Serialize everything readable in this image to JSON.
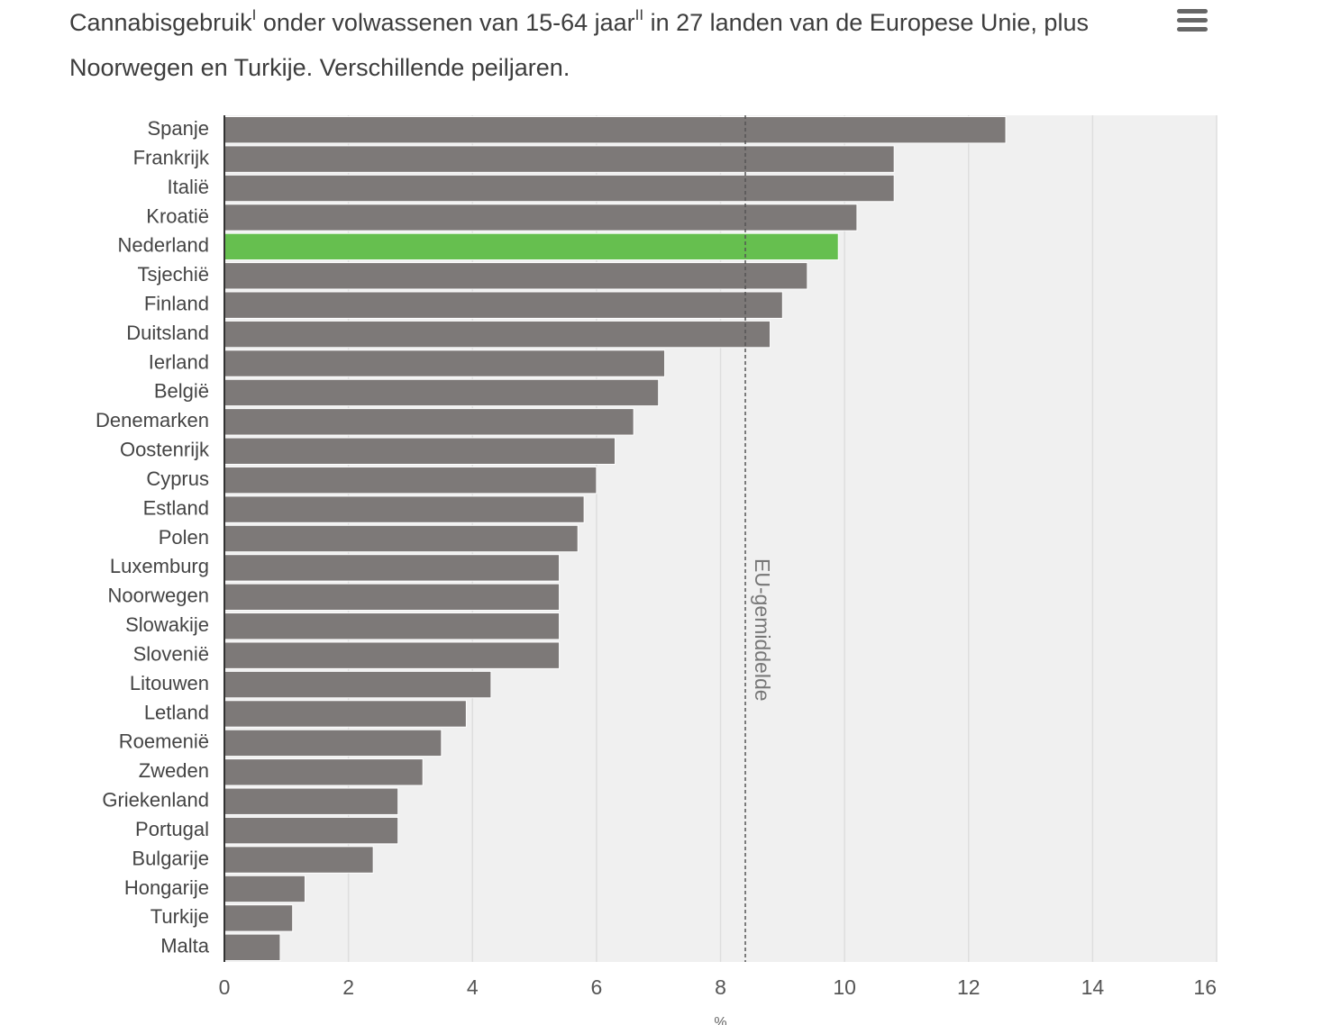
{
  "chart_data": {
    "type": "bar",
    "orientation": "horizontal",
    "title": [
      "Cannabisgebruik",
      "I",
      " onder volwassenen van 15-64 jaar",
      "II",
      " in 27 landen van de Europese Unie, plus Noorwegen en Turkije. Verschillende peiljaren."
    ],
    "x_label": "%",
    "categories": [
      "Spanje",
      "Frankrijk",
      "Italië",
      "Kroatië",
      "Nederland",
      "Tsjechië",
      "Finland",
      "Duitsland",
      "Ierland",
      "België",
      "Denemarken",
      "Oostenrijk",
      "Cyprus",
      "Estland",
      "Polen",
      "Luxemburg",
      "Noorwegen",
      "Slowakije",
      "Slovenië",
      "Litouwen",
      "Letland",
      "Roemenië",
      "Zweden",
      "Griekenland",
      "Portugal",
      "Bulgarije",
      "Hongarije",
      "Turkije",
      "Malta"
    ],
    "values": [
      12.6,
      10.8,
      10.8,
      10.2,
      9.9,
      9.4,
      9.0,
      8.8,
      7.1,
      7.0,
      6.6,
      6.3,
      6.0,
      5.8,
      5.7,
      5.4,
      5.4,
      5.4,
      5.4,
      4.3,
      3.9,
      3.5,
      3.2,
      2.8,
      2.8,
      2.4,
      1.3,
      1.1,
      0.9
    ],
    "colors": [
      "#7d7978",
      "#7d7978",
      "#7d7978",
      "#7d7978",
      "#66bf4f",
      "#7d7978",
      "#7d7978",
      "#7d7978",
      "#7d7978",
      "#7d7978",
      "#7d7978",
      "#7d7978",
      "#7d7978",
      "#7d7978",
      "#7d7978",
      "#7d7978",
      "#7d7978",
      "#7d7978",
      "#7d7978",
      "#7d7978",
      "#7d7978",
      "#7d7978",
      "#7d7978",
      "#7d7978",
      "#7d7978",
      "#7d7978",
      "#7d7978",
      "#7d7978",
      "#7d7978"
    ],
    "xlim": [
      0,
      16
    ],
    "xticks": [
      0,
      2,
      4,
      6,
      8,
      10,
      12,
      14,
      16
    ],
    "grid": true,
    "reference_line": {
      "value": 8.4,
      "label": "EU-gemiddelde"
    }
  }
}
